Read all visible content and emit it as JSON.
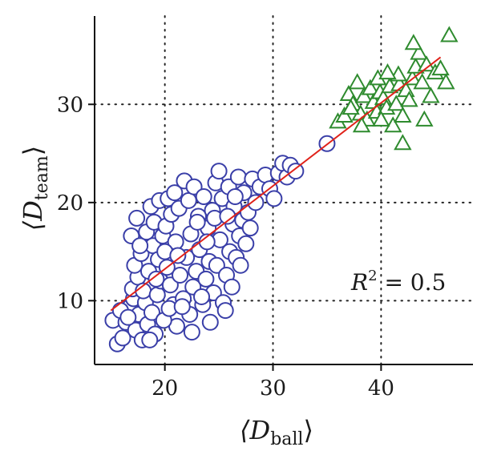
{
  "chart_data": {
    "type": "scatter",
    "xlabel": {
      "prefix": "⟨D",
      "subscript": "ball",
      "suffix": "⟩"
    },
    "ylabel": {
      "prefix": "⟨D",
      "subscript": "team",
      "suffix": "⟩"
    },
    "xlim": [
      13.5,
      48.5
    ],
    "ylim": [
      3.5,
      39
    ],
    "xticks": [
      20,
      30,
      40
    ],
    "yticks": [
      10,
      20,
      30
    ],
    "xtick_labels": [
      "20",
      "30",
      "40"
    ],
    "ytick_labels": [
      "10",
      "20",
      "30"
    ],
    "grid": "dotted",
    "annotation": {
      "prefix": "R",
      "superscript": "2",
      "suffix": " = 0.5",
      "position": "lower-right"
    },
    "series": [
      {
        "marker": "circle",
        "color": "#3a3fa8",
        "points": [
          [
            15.2,
            8.0
          ],
          [
            15.6,
            5.6
          ],
          [
            16.1,
            6.2
          ],
          [
            16.4,
            7.8
          ],
          [
            16.8,
            9.4
          ],
          [
            17.1,
            10.2
          ],
          [
            17.3,
            7.0
          ],
          [
            17.6,
            8.6
          ],
          [
            17.9,
            6.0
          ],
          [
            18.2,
            9.8
          ],
          [
            15.9,
            9.0
          ],
          [
            16.6,
            8.3
          ],
          [
            17.0,
            11.2
          ],
          [
            17.5,
            12.4
          ],
          [
            18.0,
            11.0
          ],
          [
            18.4,
            7.6
          ],
          [
            18.8,
            8.8
          ],
          [
            19.1,
            6.6
          ],
          [
            19.3,
            10.6
          ],
          [
            19.6,
            12.0
          ],
          [
            17.2,
            13.6
          ],
          [
            17.8,
            14.8
          ],
          [
            18.5,
            13.0
          ],
          [
            18.9,
            15.6
          ],
          [
            19.4,
            14.2
          ],
          [
            19.8,
            16.6
          ],
          [
            20.2,
            13.4
          ],
          [
            20.5,
            11.6
          ],
          [
            20.8,
            9.6
          ],
          [
            21.1,
            7.4
          ],
          [
            16.9,
            16.6
          ],
          [
            17.4,
            18.4
          ],
          [
            17.7,
            15.6
          ],
          [
            18.3,
            17.0
          ],
          [
            18.7,
            19.6
          ],
          [
            19.0,
            18.0
          ],
          [
            19.5,
            20.2
          ],
          [
            20.1,
            17.6
          ],
          [
            20.6,
            18.8
          ],
          [
            21.0,
            16.0
          ],
          [
            21.4,
            12.6
          ],
          [
            21.7,
            10.2
          ],
          [
            22.0,
            14.4
          ],
          [
            22.3,
            8.6
          ],
          [
            22.6,
            11.4
          ],
          [
            22.9,
            13.0
          ],
          [
            23.2,
            15.2
          ],
          [
            23.5,
            9.6
          ],
          [
            23.8,
            12.2
          ],
          [
            24.1,
            14.0
          ],
          [
            20.3,
            20.4
          ],
          [
            20.9,
            21.0
          ],
          [
            21.3,
            19.4
          ],
          [
            21.8,
            22.2
          ],
          [
            22.2,
            20.2
          ],
          [
            22.7,
            21.6
          ],
          [
            23.1,
            18.6
          ],
          [
            23.6,
            20.6
          ],
          [
            24.0,
            17.4
          ],
          [
            24.4,
            19.2
          ],
          [
            24.5,
            10.8
          ],
          [
            24.8,
            13.6
          ],
          [
            25.1,
            16.2
          ],
          [
            25.4,
            9.8
          ],
          [
            25.7,
            12.6
          ],
          [
            26.0,
            15.0
          ],
          [
            26.3,
            17.8
          ],
          [
            26.6,
            14.4
          ],
          [
            26.9,
            16.6
          ],
          [
            27.2,
            18.2
          ],
          [
            24.7,
            22.0
          ],
          [
            25.0,
            23.2
          ],
          [
            25.3,
            20.4
          ],
          [
            25.9,
            21.6
          ],
          [
            26.4,
            19.6
          ],
          [
            26.8,
            22.6
          ],
          [
            27.3,
            21.0
          ],
          [
            27.7,
            19.0
          ],
          [
            28.1,
            22.4
          ],
          [
            28.4,
            20.0
          ],
          [
            28.8,
            21.6
          ],
          [
            29.3,
            22.8
          ],
          [
            29.7,
            21.4
          ],
          [
            30.1,
            20.4
          ],
          [
            30.5,
            23.0
          ],
          [
            30.9,
            24.0
          ],
          [
            31.3,
            22.6
          ],
          [
            31.6,
            23.8
          ],
          [
            32.1,
            23.2
          ],
          [
            27.9,
            17.4
          ],
          [
            18.6,
            6.0
          ],
          [
            19.9,
            8.0
          ],
          [
            20.4,
            9.2
          ],
          [
            21.6,
            9.4
          ],
          [
            22.5,
            6.8
          ],
          [
            23.4,
            10.4
          ],
          [
            24.2,
            7.8
          ],
          [
            25.6,
            9.0
          ],
          [
            26.2,
            11.4
          ],
          [
            27.0,
            13.6
          ],
          [
            19.2,
            12.2
          ],
          [
            20.0,
            15.0
          ],
          [
            21.2,
            14.6
          ],
          [
            22.4,
            16.8
          ],
          [
            23.0,
            18.0
          ],
          [
            23.9,
            16.0
          ],
          [
            24.6,
            18.4
          ],
          [
            25.8,
            18.6
          ],
          [
            26.5,
            20.6
          ],
          [
            27.5,
            15.8
          ],
          [
            35.0,
            26.0
          ]
        ]
      },
      {
        "marker": "triangle",
        "color": "#2e8b2e",
        "points": [
          [
            36.0,
            28.2
          ],
          [
            36.6,
            28.8
          ],
          [
            37.0,
            31.0
          ],
          [
            37.4,
            30.0
          ],
          [
            37.8,
            32.2
          ],
          [
            38.1,
            29.0
          ],
          [
            38.4,
            30.8
          ],
          [
            38.7,
            28.4
          ],
          [
            39.0,
            31.6
          ],
          [
            39.3,
            30.2
          ],
          [
            39.6,
            29.2
          ],
          [
            39.9,
            31.2
          ],
          [
            40.2,
            30.6
          ],
          [
            40.5,
            29.6
          ],
          [
            40.8,
            31.8
          ],
          [
            41.1,
            27.8
          ],
          [
            41.4,
            30.0
          ],
          [
            41.7,
            32.0
          ],
          [
            42.0,
            28.8
          ],
          [
            42.3,
            31.4
          ],
          [
            42.6,
            30.4
          ],
          [
            42.9,
            32.6
          ],
          [
            43.2,
            33.8
          ],
          [
            43.5,
            35.2
          ],
          [
            43.8,
            32.2
          ],
          [
            44.2,
            34.0
          ],
          [
            44.6,
            30.8
          ],
          [
            45.0,
            33.2
          ],
          [
            45.5,
            33.6
          ],
          [
            46.0,
            32.2
          ],
          [
            46.3,
            37.0
          ],
          [
            43.0,
            36.2
          ],
          [
            42.0,
            26.0
          ],
          [
            41.6,
            33.0
          ],
          [
            40.0,
            28.4
          ],
          [
            38.2,
            27.8
          ],
          [
            44.0,
            28.4
          ],
          [
            37.2,
            29.6
          ],
          [
            39.7,
            32.6
          ],
          [
            40.6,
            33.2
          ]
        ]
      }
    ],
    "fit_line": {
      "color": "#e0221a",
      "x": [
        15.0,
        45.5
      ],
      "y": [
        9.0,
        34.8
      ]
    }
  }
}
